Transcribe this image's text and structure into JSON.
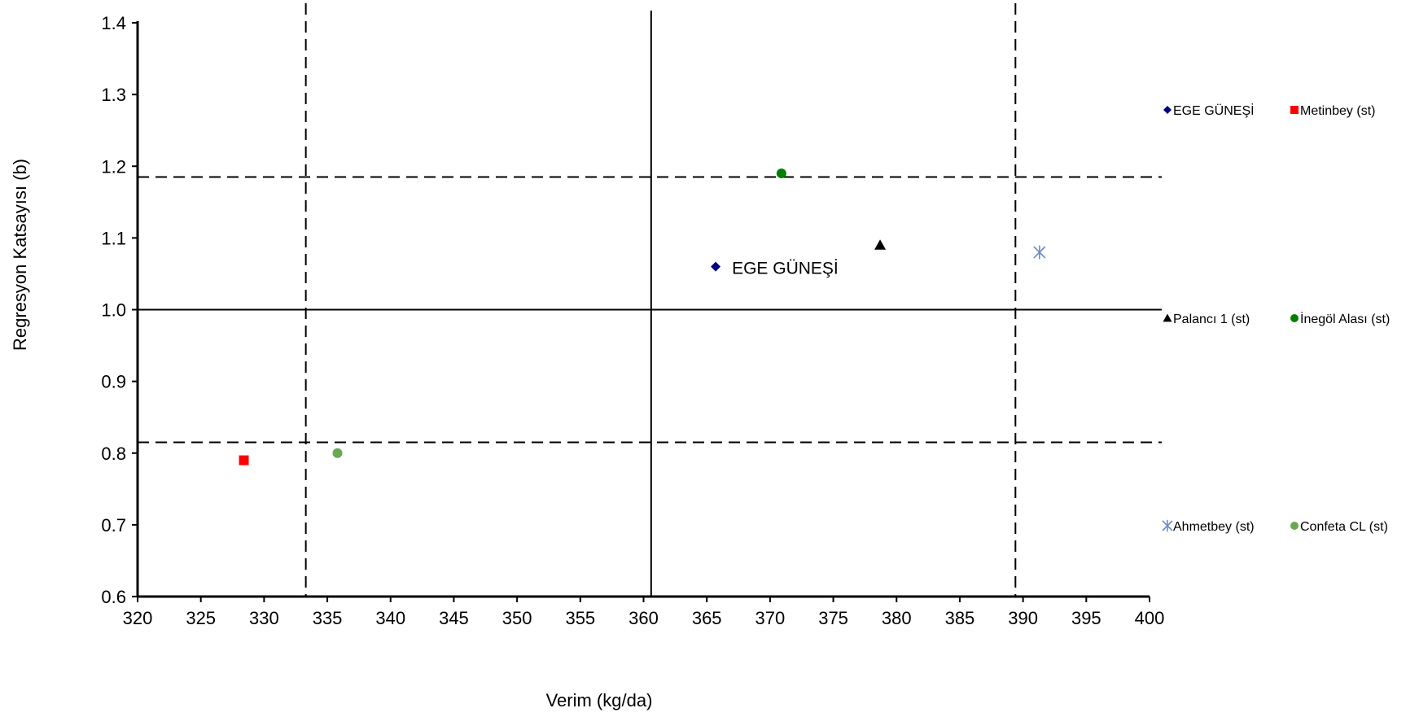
{
  "chart_data": {
    "type": "scatter",
    "title": "",
    "xlabel": "Verim (kg/da)",
    "ylabel": "Regresyon Katsayısı (b)",
    "xlim": [
      320,
      400
    ],
    "ylim": [
      0.6,
      1.4
    ],
    "xticks": [
      "320",
      "325",
      "330",
      "335",
      "340",
      "345",
      "350",
      "355",
      "360",
      "365",
      "370",
      "375",
      "380",
      "385",
      "390",
      "395",
      "400"
    ],
    "yticks": [
      "0.6",
      "0.7",
      "0.8",
      "0.9",
      "1.0",
      "1.1",
      "1.2",
      "1.3",
      "1.4"
    ],
    "grid": false,
    "legend_position": "right",
    "series": [
      {
        "name": "EGE GÜNEŞİ",
        "marker": "diamond",
        "color": "#000080",
        "x": 365.7,
        "y": 1.06
      },
      {
        "name": "Metinbey (st)",
        "marker": "square",
        "color": "#ff0000",
        "x": 328.4,
        "y": 0.79
      },
      {
        "name": "Palancı 1 (st)",
        "marker": "triangle",
        "color": "#000000",
        "x": 378.7,
        "y": 1.09
      },
      {
        "name": "İnegöl Alası (st)",
        "marker": "circle",
        "color": "#008000",
        "x": 370.9,
        "y": 1.19
      },
      {
        "name": "Ahmetbey (st)",
        "marker": "asterisk",
        "color": "#6a8ccc",
        "x": 391.3,
        "y": 1.08
      },
      {
        "name": "Confeta CL (st)",
        "marker": "circle",
        "color": "#6aa84f",
        "x": 335.8,
        "y": 0.8
      }
    ],
    "reference_lines": {
      "solid_vertical_x": 360.6,
      "solid_horizontal_y": 1.0,
      "dashed_vertical_x": [
        333.3,
        389.4
      ],
      "dashed_horizontal_y": [
        0.815,
        1.185
      ]
    },
    "annotations": [
      {
        "text": "EGE GÜNEŞİ",
        "series": "EGE GÜNEŞİ"
      }
    ]
  }
}
